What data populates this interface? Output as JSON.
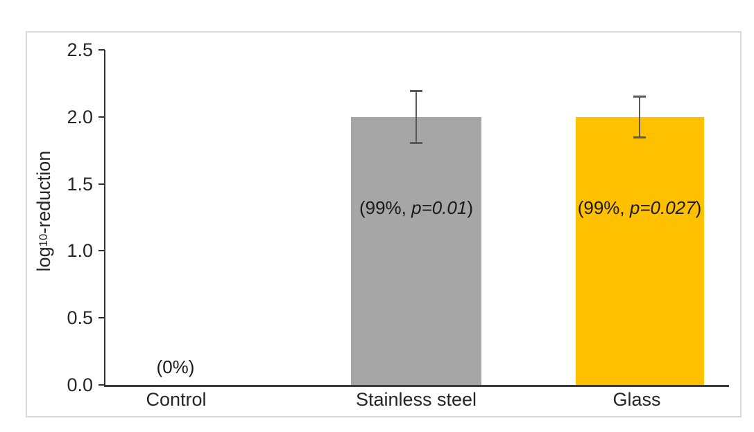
{
  "chart_data": {
    "type": "bar",
    "title": "",
    "ylabel": "log10-reduction",
    "ylabel_parts": {
      "pre": "log",
      "sub": "10",
      "post": "-reduction"
    },
    "categories": [
      "Control",
      "Stainless steel",
      "Glass"
    ],
    "values": [
      0,
      2.0,
      2.0
    ],
    "bar_colors": [
      "transparent",
      "#A6A6A6",
      "#FFC000"
    ],
    "error_bars": [
      null,
      {
        "plus": 0.2,
        "minus": 0.2
      },
      {
        "plus": 0.16,
        "minus": 0.16
      }
    ],
    "annotations": [
      {
        "full": "(0%)",
        "pre": "(0%)",
        "italic": "",
        "post": ""
      },
      {
        "full": "(99%, p=0.01)",
        "pre": "(99%, ",
        "italic": "p=0.01",
        "post": ")"
      },
      {
        "full": "(99%, p=0.027)",
        "pre": "(99%, ",
        "italic": "p=0.027",
        "post": ")"
      }
    ],
    "yticks": [
      0.0,
      0.5,
      1.0,
      1.5,
      2.0,
      2.5
    ],
    "ytick_labels_desc": [
      "2.5",
      "2.0",
      "1.5",
      "1.0",
      "0.5",
      "0.0"
    ],
    "ylim": [
      0,
      2.5
    ],
    "grid": false,
    "legend": "none",
    "layout": {
      "frame_border_color": "#D9D9D9",
      "axis_color": "#3B3B3B",
      "error_bar_color": "#595959",
      "text_color": "#262626",
      "background": "#FFFFFF"
    }
  }
}
